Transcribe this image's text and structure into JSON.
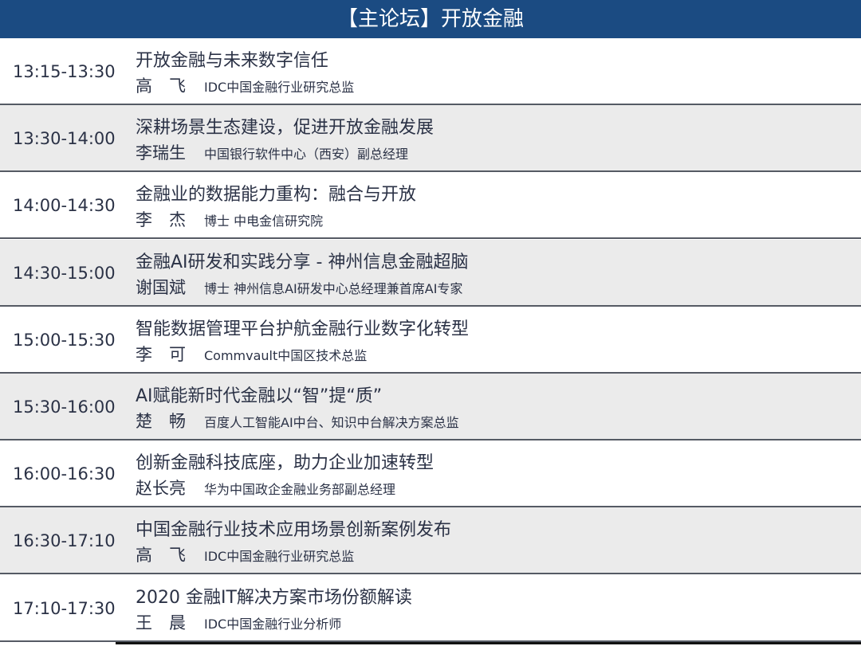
{
  "header": {
    "title": "【主论坛】开放金融"
  },
  "colors": {
    "header_bg": "#1b4b82",
    "alt_row_bg": "#ebebeb",
    "text": "#2b3246"
  },
  "sessions": [
    {
      "time": "13:15-13:30",
      "title": "开放金融与未来数字信任",
      "speaker": "高　飞",
      "role": "IDC中国金融行业研究总监"
    },
    {
      "time": "13:30-14:00",
      "title": "深耕场景生态建设，促进开放金融发展",
      "speaker": "李瑞生",
      "role": "中国银行软件中心（西安）副总经理"
    },
    {
      "time": "14:00-14:30",
      "title": "金融业的数据能力重构：融合与开放",
      "speaker": "李　杰",
      "role": "博士 中电金信研究院"
    },
    {
      "time": "14:30-15:00",
      "title": "金融AI研发和实践分享 - 神州信息金融超脑",
      "speaker": "谢国斌",
      "role": "博士 神州信息AI研发中心总经理兼首席AI专家"
    },
    {
      "time": "15:00-15:30",
      "title": "智能数据管理平台护航金融行业数字化转型",
      "speaker": "李　可",
      "role": "Commvault中国区技术总监"
    },
    {
      "time": "15:30-16:00",
      "title": "AI赋能新时代金融以“智”提“质”",
      "speaker": "楚　畅",
      "role": "百度人工智能AI中台、知识中台解决方案总监"
    },
    {
      "time": "16:00-16:30",
      "title": "创新金融科技底座，助力企业加速转型",
      "speaker": "赵长亮",
      "role": "华为中国政企金融业务部副总经理"
    },
    {
      "time": "16:30-17:10",
      "title": "中国金融行业技术应用场景创新案例发布",
      "speaker": "高　飞",
      "role": "IDC中国金融行业研究总监"
    },
    {
      "time": "17:10-17:30",
      "title": "2020 金融IT解决方案市场份额解读",
      "speaker": "王　晨",
      "role": "IDC中国金融行业分析师"
    }
  ]
}
